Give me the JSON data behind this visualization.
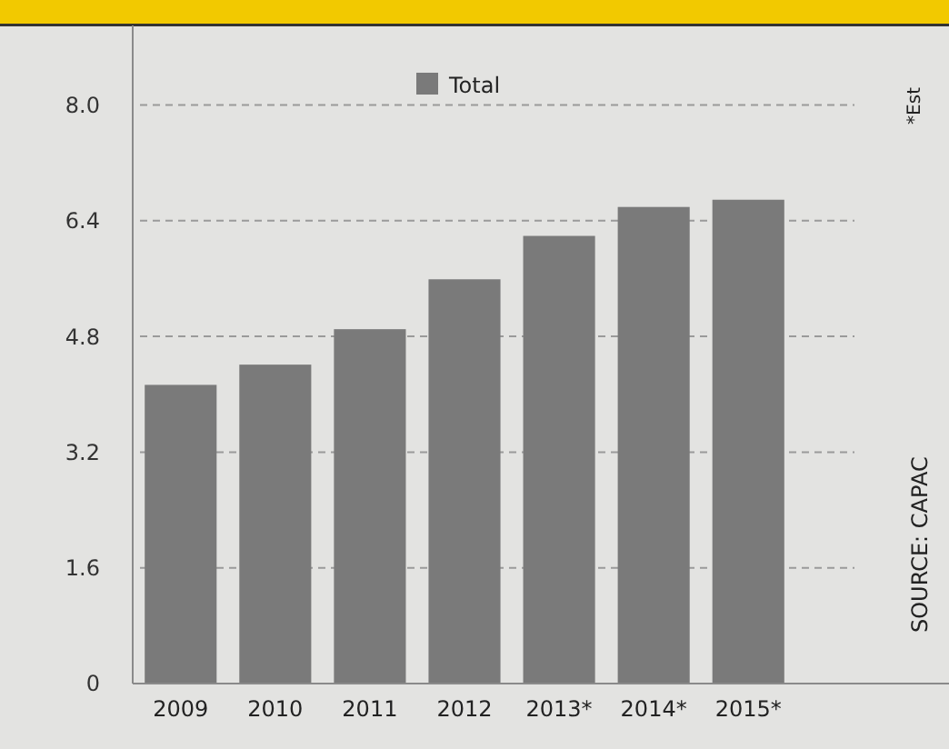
{
  "chart_data": {
    "type": "bar",
    "categories": [
      "2009",
      "2010",
      "2011",
      "2012",
      "2013*",
      "2014*",
      "2015*"
    ],
    "series": [
      {
        "name": "Total",
        "color": "#7a7a7a",
        "values": [
          4.13,
          4.41,
          4.9,
          5.59,
          6.19,
          6.59,
          6.69
        ]
      }
    ],
    "ylim": [
      0,
      9.1
    ],
    "yticks": [
      0,
      1.6,
      3.2,
      4.8,
      6.4,
      {
        "value": 8,
        "label": "8.0"
      }
    ],
    "grid": "y",
    "legend": "top",
    "annotations": [
      "*Est",
      "SOURCE: CAPAC"
    ]
  }
}
